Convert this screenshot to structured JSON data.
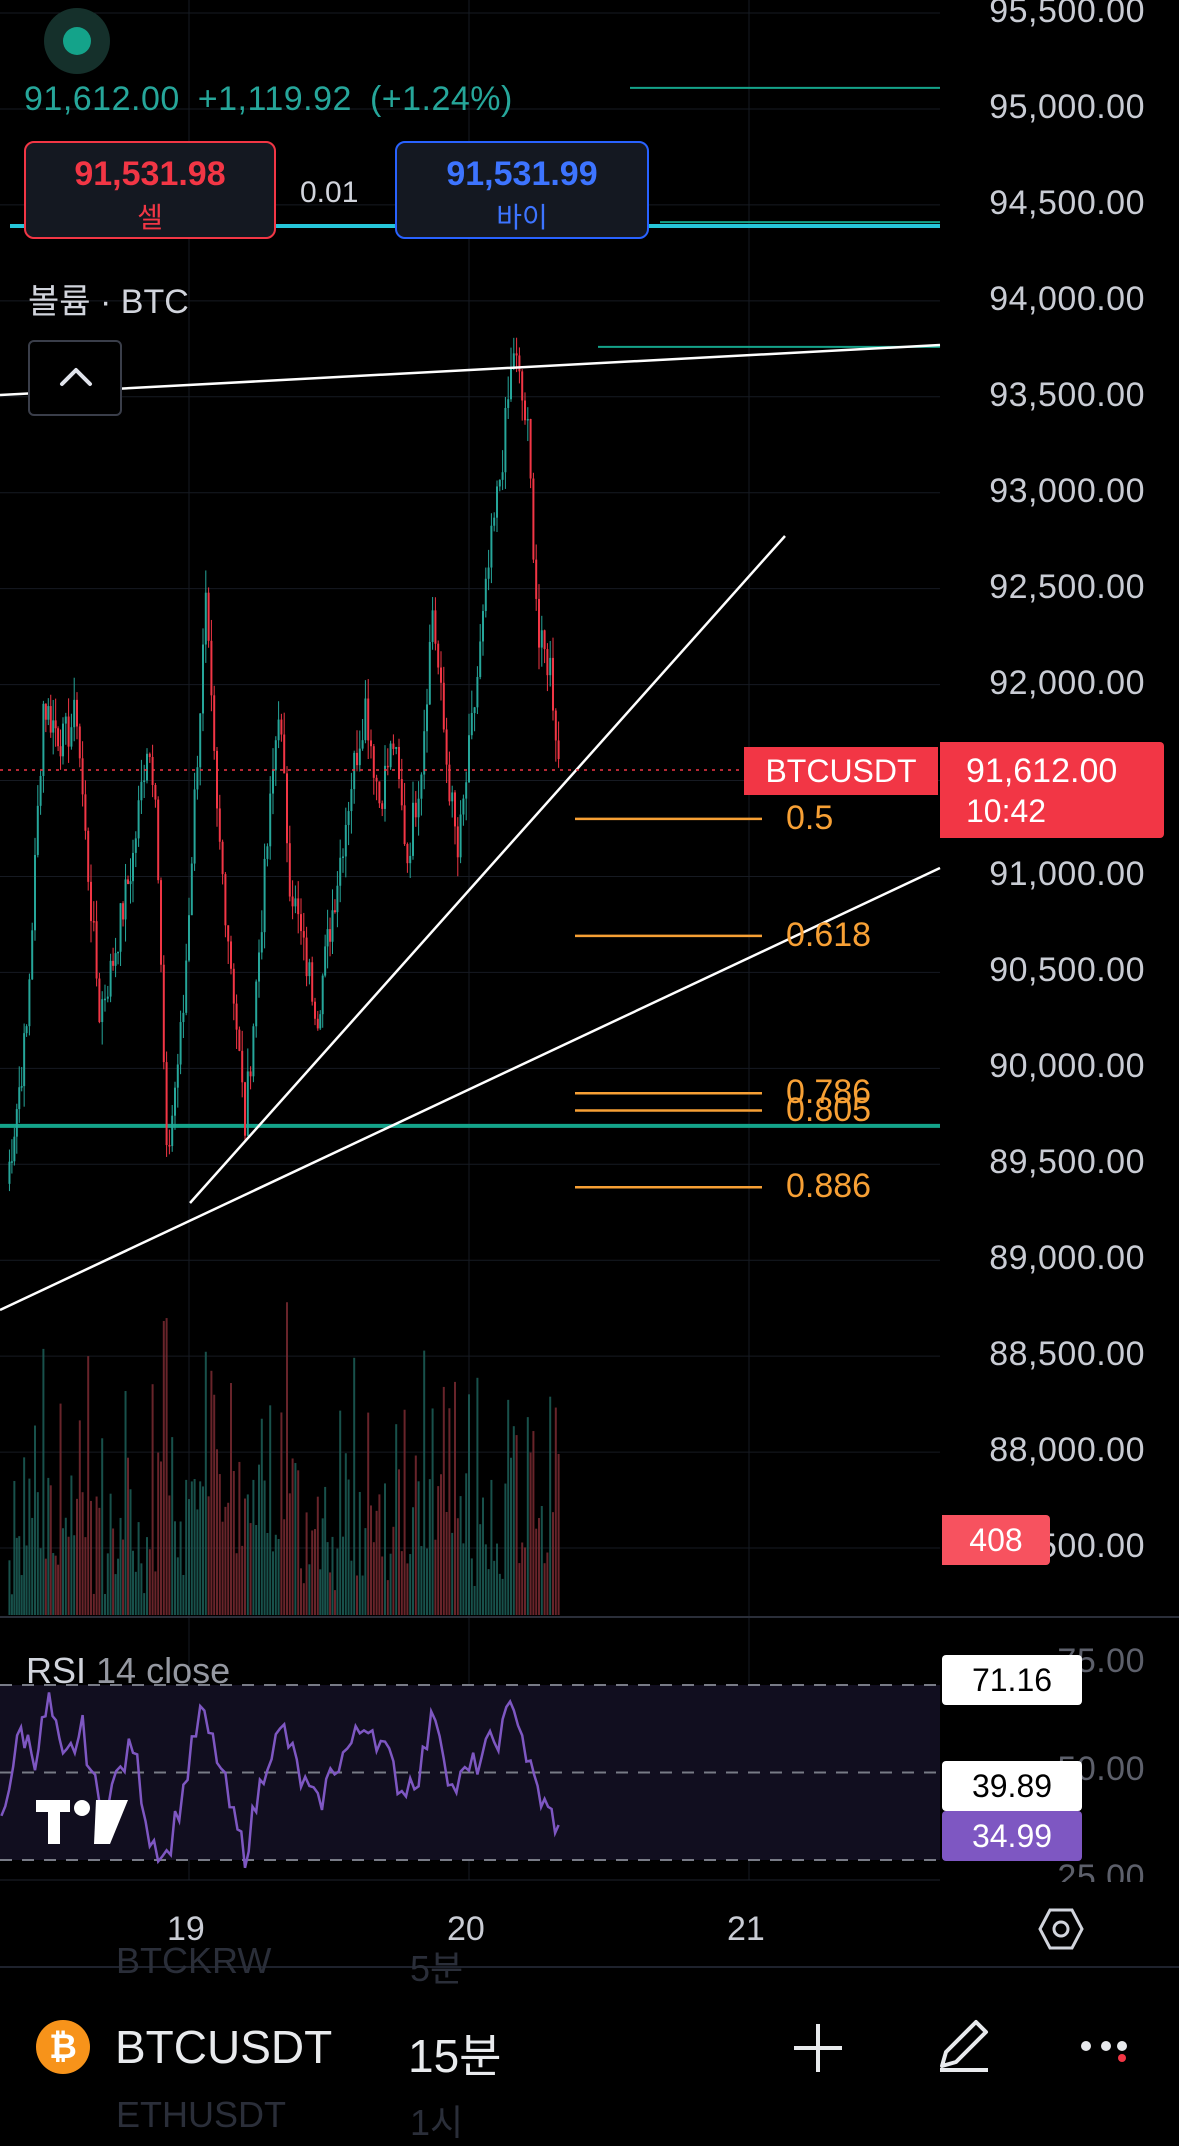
{
  "header": {
    "last_price": "91,612.00",
    "change": "+1,119.92",
    "change_pct": "(+1.24%)",
    "sell_price": "91,531.98",
    "sell_label": "셀",
    "spread": "0.01",
    "buy_price": "91,531.99",
    "buy_label": "바이",
    "volume_label": "볼륨 · BTC"
  },
  "price_tag": {
    "symbol": "BTCUSDT",
    "price": "91,612.00",
    "countdown": "10:42"
  },
  "volume_tag": "408",
  "rsi": {
    "title": "RSI",
    "params": "14 close",
    "value_tag_1": "71.16",
    "value_tag_2": "39.89",
    "value_tag_3": "34.99",
    "upper_partial": "75.00",
    "middle_partial": "50.00",
    "lower_partial": "25.00"
  },
  "bottom_bar": {
    "symbol": "BTCUSDT",
    "interval": "15분",
    "ghost_symbol_1": "BTCKRW",
    "ghost_interval_1": "5분",
    "ghost_symbol_2": "ETHUSDT",
    "ghost_interval_2": "1시"
  },
  "colors": {
    "up": "#26a69a",
    "down": "#f23645",
    "fib": "#f7a035",
    "rsi": "#7e57c2",
    "teal_line": "#14a38a",
    "cyan_line": "#26c6da"
  },
  "icons": [
    "status-dot-icon",
    "chevron-up-icon",
    "tradingview-logo-icon",
    "settings-hexagon-icon",
    "plus-icon",
    "pen-icon",
    "more-dots-icon",
    "bitcoin-icon"
  ],
  "chart_data": {
    "type": "candlestick",
    "symbol": "BTCUSDT",
    "interval": "15분",
    "y_ticks": [
      "95,500.00",
      "95,000.00",
      "94,500.00",
      "94,000.00",
      "93,500.00",
      "93,000.00",
      "92,500.00",
      "92,000.00",
      "91,500.00",
      "91,000.00",
      "90,500.00",
      "90,000.00",
      "89,500.00",
      "89,000.00",
      "88,500.00",
      "88,000.00",
      "87,500.00"
    ],
    "x_ticks": [
      "19",
      "20",
      "21"
    ],
    "ylim": [
      87500,
      95500
    ],
    "last_price": 91612.0,
    "fib_levels": [
      {
        "label": "0.5",
        "price": 91300
      },
      {
        "label": "0.618",
        "price": 90690
      },
      {
        "label": "0.786",
        "price": 89870
      },
      {
        "label": "0.805",
        "price": 89780
      },
      {
        "label": "0.886",
        "price": 89380
      }
    ],
    "horizontal_levels": [
      95110,
      94410,
      94390,
      93760,
      89700
    ],
    "price_path": [
      {
        "x": 18.35,
        "y": 89400
      },
      {
        "x": 18.42,
        "y": 90200
      },
      {
        "x": 18.48,
        "y": 91900
      },
      {
        "x": 18.55,
        "y": 91700
      },
      {
        "x": 18.6,
        "y": 91850
      },
      {
        "x": 18.63,
        "y": 91200
      },
      {
        "x": 18.68,
        "y": 90300
      },
      {
        "x": 18.72,
        "y": 90500
      },
      {
        "x": 18.8,
        "y": 91100
      },
      {
        "x": 18.85,
        "y": 91700
      },
      {
        "x": 18.88,
        "y": 91500
      },
      {
        "x": 18.92,
        "y": 89500
      },
      {
        "x": 18.98,
        "y": 90300
      },
      {
        "x": 19.02,
        "y": 91400
      },
      {
        "x": 19.06,
        "y": 92400
      },
      {
        "x": 19.1,
        "y": 91300
      },
      {
        "x": 19.16,
        "y": 90400
      },
      {
        "x": 19.2,
        "y": 89700
      },
      {
        "x": 19.26,
        "y": 90800
      },
      {
        "x": 19.32,
        "y": 91900
      },
      {
        "x": 19.36,
        "y": 91000
      },
      {
        "x": 19.41,
        "y": 90600
      },
      {
        "x": 19.46,
        "y": 90300
      },
      {
        "x": 19.53,
        "y": 91000
      },
      {
        "x": 19.58,
        "y": 91500
      },
      {
        "x": 19.63,
        "y": 91900
      },
      {
        "x": 19.68,
        "y": 91400
      },
      {
        "x": 19.73,
        "y": 91700
      },
      {
        "x": 19.78,
        "y": 91100
      },
      {
        "x": 19.83,
        "y": 91600
      },
      {
        "x": 19.87,
        "y": 92400
      },
      {
        "x": 19.92,
        "y": 91600
      },
      {
        "x": 19.96,
        "y": 91100
      },
      {
        "x": 20.02,
        "y": 91900
      },
      {
        "x": 20.07,
        "y": 92600
      },
      {
        "x": 20.12,
        "y": 93200
      },
      {
        "x": 20.16,
        "y": 93750
      },
      {
        "x": 20.21,
        "y": 93300
      },
      {
        "x": 20.25,
        "y": 92200
      },
      {
        "x": 20.29,
        "y": 92100
      },
      {
        "x": 20.32,
        "y": 91612
      }
    ],
    "volume_peak_bar": 408,
    "rsi_period": 14,
    "rsi_levels": [
      75,
      50,
      25
    ],
    "rsi_last": 34.99,
    "rsi_path": [
      {
        "x": 18.33,
        "y": 38
      },
      {
        "x": 18.4,
        "y": 62
      },
      {
        "x": 18.45,
        "y": 55
      },
      {
        "x": 18.5,
        "y": 70
      },
      {
        "x": 18.55,
        "y": 52
      },
      {
        "x": 18.62,
        "y": 62
      },
      {
        "x": 18.68,
        "y": 40
      },
      {
        "x": 18.74,
        "y": 48
      },
      {
        "x": 18.8,
        "y": 58
      },
      {
        "x": 18.86,
        "y": 32
      },
      {
        "x": 18.92,
        "y": 26
      },
      {
        "x": 18.98,
        "y": 45
      },
      {
        "x": 19.04,
        "y": 67
      },
      {
        "x": 19.1,
        "y": 55
      },
      {
        "x": 19.16,
        "y": 36
      },
      {
        "x": 19.2,
        "y": 27
      },
      {
        "x": 19.28,
        "y": 55
      },
      {
        "x": 19.34,
        "y": 62
      },
      {
        "x": 19.4,
        "y": 48
      },
      {
        "x": 19.46,
        "y": 40
      },
      {
        "x": 19.52,
        "y": 52
      },
      {
        "x": 19.58,
        "y": 58
      },
      {
        "x": 19.64,
        "y": 65
      },
      {
        "x": 19.7,
        "y": 56
      },
      {
        "x": 19.76,
        "y": 45
      },
      {
        "x": 19.82,
        "y": 50
      },
      {
        "x": 19.88,
        "y": 68
      },
      {
        "x": 19.94,
        "y": 45
      },
      {
        "x": 20.0,
        "y": 50
      },
      {
        "x": 20.06,
        "y": 56
      },
      {
        "x": 20.12,
        "y": 62
      },
      {
        "x": 20.16,
        "y": 71
      },
      {
        "x": 20.22,
        "y": 50
      },
      {
        "x": 20.27,
        "y": 40
      },
      {
        "x": 20.32,
        "y": 34.99
      }
    ]
  }
}
